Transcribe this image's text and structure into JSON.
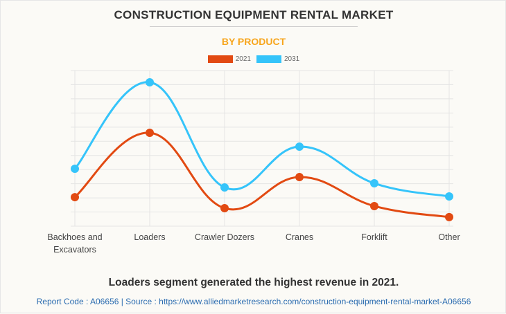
{
  "title": "CONSTRUCTION EQUIPMENT RENTAL MARKET",
  "subtitle": "BY PRODUCT",
  "caption": "Loaders segment generated the highest revenue in 2021.",
  "source": "Report Code : A06656  |  Source : https://www.alliedmarketresearch.com/construction-equipment-rental-market-A06656",
  "chart_data": {
    "type": "line",
    "categories": [
      [
        "Backhoes and",
        "Excavators"
      ],
      [
        "Loaders"
      ],
      [
        "Crawler Dozers"
      ],
      [
        "Cranes"
      ],
      [
        "Forklift"
      ],
      [
        "Other"
      ]
    ],
    "series": [
      {
        "name": "2021",
        "color": "#e24a12",
        "values": [
          2.05,
          6.6,
          1.27,
          3.47,
          1.42,
          0.64
        ]
      },
      {
        "name": "2031",
        "color": "#35c4fa",
        "values": [
          4.06,
          10.17,
          2.74,
          5.62,
          3.03,
          2.1
        ]
      }
    ],
    "ylim": [
      0,
      11
    ],
    "y_tick_labels": "none",
    "grid": true,
    "legend": "top-center"
  }
}
